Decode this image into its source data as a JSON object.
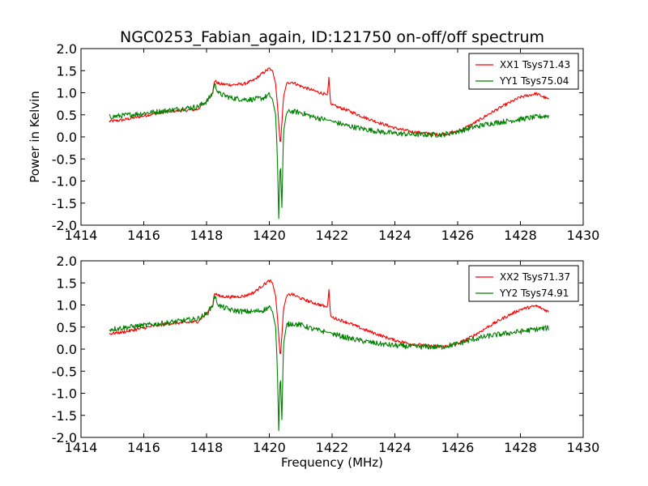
{
  "chart_data": [
    {
      "type": "line",
      "title": "NGC0253_Fabian_again, ID:121750 on-off/off spectrum",
      "xlabel": "",
      "ylabel": "Power in Kelvin",
      "xlim": [
        1414,
        1430
      ],
      "ylim": [
        -2.0,
        2.0
      ],
      "xticks": [
        1414,
        1416,
        1418,
        1420,
        1422,
        1424,
        1426,
        1428,
        1430
      ],
      "yticks": [
        -2.0,
        -1.5,
        -1.0,
        -0.5,
        0.0,
        0.5,
        1.0,
        1.5,
        2.0
      ],
      "legend_position": "top-right",
      "grid": false,
      "series": [
        {
          "name": "XX1 Tsys71.43",
          "color": "#ff0000",
          "x": [
            1414.9,
            1415.3,
            1415.8,
            1416.3,
            1416.8,
            1417.3,
            1417.7,
            1418.0,
            1418.2,
            1418.25,
            1418.4,
            1418.8,
            1419.2,
            1419.5,
            1419.8,
            1420.0,
            1420.1,
            1420.2,
            1420.25,
            1420.3,
            1420.35,
            1420.4,
            1420.45,
            1420.55,
            1420.7,
            1421.0,
            1421.4,
            1421.85,
            1421.9,
            1421.95,
            1422.0,
            1422.5,
            1423.0,
            1423.5,
            1424.0,
            1424.5,
            1425.0,
            1425.5,
            1426.0,
            1426.5,
            1427.0,
            1427.5,
            1428.0,
            1428.5,
            1428.9
          ],
          "y": [
            0.35,
            0.38,
            0.45,
            0.52,
            0.58,
            0.6,
            0.62,
            0.8,
            1.0,
            1.28,
            1.2,
            1.18,
            1.2,
            1.28,
            1.45,
            1.55,
            1.5,
            1.2,
            0.8,
            0.3,
            -0.2,
            0.3,
            0.9,
            1.2,
            1.25,
            1.15,
            1.05,
            0.95,
            1.35,
            0.75,
            0.72,
            0.6,
            0.45,
            0.32,
            0.2,
            0.12,
            0.08,
            0.05,
            0.12,
            0.3,
            0.52,
            0.72,
            0.9,
            0.98,
            0.85
          ]
        },
        {
          "name": "YY1 Tsys75.04",
          "color": "#008000",
          "x": [
            1414.9,
            1415.3,
            1415.8,
            1416.3,
            1416.8,
            1417.3,
            1417.7,
            1418.0,
            1418.2,
            1418.25,
            1418.4,
            1418.8,
            1419.2,
            1419.5,
            1419.8,
            1420.0,
            1420.1,
            1420.2,
            1420.25,
            1420.3,
            1420.35,
            1420.4,
            1420.45,
            1420.55,
            1420.7,
            1421.0,
            1421.4,
            1421.85,
            1421.9,
            1421.95,
            1422.0,
            1422.5,
            1423.0,
            1423.5,
            1424.0,
            1424.5,
            1425.0,
            1425.5,
            1426.0,
            1426.5,
            1427.0,
            1427.5,
            1428.0,
            1428.5,
            1428.9
          ],
          "y": [
            0.45,
            0.48,
            0.52,
            0.56,
            0.6,
            0.65,
            0.68,
            0.8,
            1.0,
            1.2,
            0.98,
            0.88,
            0.85,
            0.85,
            0.88,
            0.95,
            0.85,
            0.5,
            -0.3,
            -1.85,
            -0.5,
            -1.6,
            0.1,
            0.55,
            0.58,
            0.55,
            0.45,
            0.38,
            0.38,
            0.38,
            0.35,
            0.25,
            0.18,
            0.12,
            0.08,
            0.06,
            0.05,
            0.05,
            0.12,
            0.22,
            0.3,
            0.35,
            0.4,
            0.45,
            0.48
          ]
        }
      ]
    },
    {
      "type": "line",
      "title": "",
      "xlabel": "Frequency (MHz)",
      "ylabel": "",
      "xlim": [
        1414,
        1430
      ],
      "ylim": [
        -2.0,
        2.0
      ],
      "xticks": [
        1414,
        1416,
        1418,
        1420,
        1422,
        1424,
        1426,
        1428,
        1430
      ],
      "yticks": [
        -2.0,
        -1.5,
        -1.0,
        -0.5,
        0.0,
        0.5,
        1.0,
        1.5,
        2.0
      ],
      "legend_position": "top-right",
      "grid": false,
      "series": [
        {
          "name": "XX2 Tsys71.37",
          "color": "#ff0000",
          "x": [
            1414.9,
            1415.3,
            1415.8,
            1416.3,
            1416.8,
            1417.3,
            1417.7,
            1418.0,
            1418.2,
            1418.25,
            1418.4,
            1418.8,
            1419.2,
            1419.5,
            1419.8,
            1420.0,
            1420.1,
            1420.2,
            1420.25,
            1420.3,
            1420.35,
            1420.4,
            1420.45,
            1420.55,
            1420.7,
            1421.0,
            1421.4,
            1421.85,
            1421.9,
            1421.95,
            1422.0,
            1422.5,
            1423.0,
            1423.5,
            1424.0,
            1424.5,
            1425.0,
            1425.5,
            1426.0,
            1426.5,
            1427.0,
            1427.5,
            1428.0,
            1428.5,
            1428.9
          ],
          "y": [
            0.35,
            0.38,
            0.45,
            0.52,
            0.58,
            0.6,
            0.62,
            0.8,
            1.0,
            1.28,
            1.2,
            1.18,
            1.2,
            1.28,
            1.45,
            1.55,
            1.5,
            1.2,
            0.8,
            0.3,
            -0.2,
            0.3,
            0.9,
            1.2,
            1.25,
            1.15,
            1.05,
            0.95,
            1.35,
            0.75,
            0.72,
            0.6,
            0.45,
            0.32,
            0.2,
            0.12,
            0.08,
            0.05,
            0.12,
            0.3,
            0.52,
            0.72,
            0.9,
            0.98,
            0.85
          ]
        },
        {
          "name": "YY2 Tsys74.91",
          "color": "#008000",
          "x": [
            1414.9,
            1415.3,
            1415.8,
            1416.3,
            1416.8,
            1417.3,
            1417.7,
            1418.0,
            1418.2,
            1418.25,
            1418.4,
            1418.8,
            1419.2,
            1419.5,
            1419.8,
            1420.0,
            1420.1,
            1420.2,
            1420.25,
            1420.3,
            1420.35,
            1420.4,
            1420.45,
            1420.55,
            1420.7,
            1421.0,
            1421.4,
            1421.85,
            1421.9,
            1421.95,
            1422.0,
            1422.5,
            1423.0,
            1423.5,
            1424.0,
            1424.5,
            1425.0,
            1425.5,
            1426.0,
            1426.5,
            1427.0,
            1427.5,
            1428.0,
            1428.5,
            1428.9
          ],
          "y": [
            0.45,
            0.48,
            0.52,
            0.56,
            0.6,
            0.65,
            0.68,
            0.8,
            1.0,
            1.2,
            0.98,
            0.88,
            0.85,
            0.85,
            0.88,
            0.95,
            0.85,
            0.5,
            -0.3,
            -1.85,
            -0.5,
            -1.6,
            0.1,
            0.55,
            0.58,
            0.55,
            0.45,
            0.38,
            0.38,
            0.38,
            0.35,
            0.25,
            0.18,
            0.12,
            0.08,
            0.06,
            0.05,
            0.05,
            0.12,
            0.22,
            0.3,
            0.35,
            0.4,
            0.45,
            0.48
          ]
        }
      ]
    }
  ]
}
